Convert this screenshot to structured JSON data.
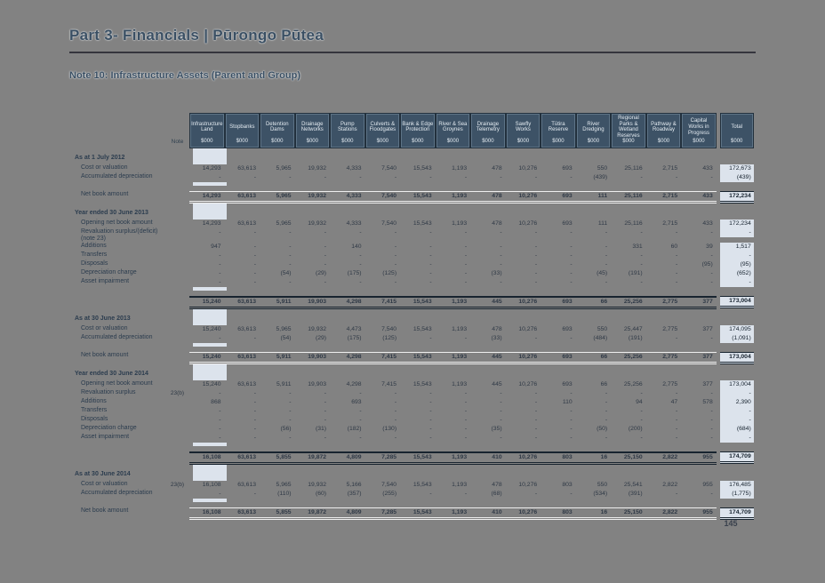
{
  "page": {
    "title": "Part 3- Financials | Pūrongo Pūtea",
    "subtitle": "Note 10: Infrastructure Assets (Parent and Group)",
    "page_number": "145"
  },
  "colors": {
    "page_background": "#828282",
    "heading_text": "#3a4f63",
    "header_cell_background": "#3d5266",
    "header_cell_text": "#e4ebf1",
    "total_column_background": "#dce3ec",
    "rule_dark": "#18242f"
  },
  "table": {
    "note_header": "Note",
    "unit": "$000",
    "columns": [
      "Infrastructure Land",
      "Stopbanks",
      "Detention Dams",
      "Drainage Networks",
      "Pump Stations",
      "Culverts & Floodgates",
      "Bank & Edge Protection",
      "River & Sea Groynes",
      "Drainage Telemetry",
      "Sawfly Works",
      "Tūtira Reserve",
      "River Dredging",
      "Regional Parks & Wetland Reserves",
      "Pathway & Roadway",
      "Capital Works in Progress",
      "Total"
    ],
    "sections": [
      {
        "header": "As at 1 July 2012",
        "rows": [
          {
            "label": "Cost or valuation",
            "note": "",
            "style": "",
            "values": [
              "14,293",
              "63,613",
              "5,965",
              "19,932",
              "4,333",
              "7,540",
              "15,543",
              "1,193",
              "478",
              "10,276",
              "693",
              "550",
              "25,116",
              "2,715",
              "433",
              "172,673"
            ]
          },
          {
            "label": "Accumulated depreciation",
            "note": "",
            "style": "",
            "values": [
              "-",
              "-",
              "-",
              "-",
              "-",
              "-",
              "-",
              "-",
              "-",
              "-",
              "-",
              "(439)",
              "-",
              "-",
              "-",
              "(439)"
            ]
          },
          {
            "label": "Net book amount",
            "note": "",
            "style": "netbook",
            "values": [
              "14,293",
              "63,613",
              "5,965",
              "19,932",
              "4,333",
              "7,540",
              "15,543",
              "1,193",
              "478",
              "10,276",
              "693",
              "111",
              "25,116",
              "2,715",
              "433",
              "172,234"
            ]
          }
        ]
      },
      {
        "header": "Year ended 30 June 2013",
        "rows": [
          {
            "label": "Opening net book amount",
            "note": "",
            "style": "",
            "values": [
              "14,293",
              "63,613",
              "5,965",
              "19,932",
              "4,333",
              "7,540",
              "15,543",
              "1,193",
              "478",
              "10,276",
              "693",
              "111",
              "25,116",
              "2,715",
              "433",
              "172,234"
            ]
          },
          {
            "label": "Revaluation surplus/(deficit) (note 23)",
            "note": "",
            "style": "",
            "values": [
              "-",
              "-",
              "-",
              "-",
              "-",
              "-",
              "-",
              "-",
              "-",
              "-",
              "-",
              "-",
              "-",
              "-",
              "-",
              "-"
            ]
          },
          {
            "label": "Additions",
            "note": "",
            "style": "",
            "values": [
              "947",
              "-",
              "-",
              "-",
              "140",
              "-",
              "-",
              "-",
              "-",
              "-",
              "-",
              "-",
              "331",
              "60",
              "39",
              "1,517"
            ]
          },
          {
            "label": "Transfers",
            "note": "",
            "style": "",
            "values": [
              "-",
              "-",
              "-",
              "-",
              "-",
              "-",
              "-",
              "-",
              "-",
              "-",
              "-",
              "-",
              "-",
              "-",
              "-",
              "-"
            ]
          },
          {
            "label": "Disposals",
            "note": "",
            "style": "",
            "values": [
              "-",
              "-",
              "-",
              "-",
              "-",
              "-",
              "-",
              "-",
              "-",
              "-",
              "-",
              "-",
              "-",
              "-",
              "(95)",
              "(95)"
            ]
          },
          {
            "label": "Depreciation charge",
            "note": "",
            "style": "",
            "values": [
              "-",
              "-",
              "(54)",
              "(29)",
              "(175)",
              "(125)",
              "-",
              "-",
              "(33)",
              "-",
              "-",
              "(45)",
              "(191)",
              "-",
              "-",
              "(652)"
            ]
          },
          {
            "label": "Asset impairment",
            "note": "",
            "style": "",
            "values": [
              "-",
              "-",
              "-",
              "-",
              "-",
              "-",
              "-",
              "-",
              "-",
              "-",
              "-",
              "-",
              "-",
              "-",
              "-",
              "-"
            ]
          },
          {
            "label": "",
            "note": "",
            "style": "closing",
            "values": [
              "15,240",
              "63,613",
              "5,911",
              "19,903",
              "4,298",
              "7,415",
              "15,543",
              "1,193",
              "445",
              "10,276",
              "693",
              "66",
              "25,256",
              "2,775",
              "377",
              "173,004"
            ]
          }
        ]
      },
      {
        "header": "As at 30 June 2013",
        "rows": [
          {
            "label": "Cost or valuation",
            "note": "",
            "style": "",
            "values": [
              "15,240",
              "63,613",
              "5,965",
              "19,932",
              "4,473",
              "7,540",
              "15,543",
              "1,193",
              "478",
              "10,276",
              "693",
              "550",
              "25,447",
              "2,775",
              "377",
              "174,095"
            ]
          },
          {
            "label": "Accumulated depreciation",
            "note": "",
            "style": "",
            "values": [
              "-",
              "-",
              "(54)",
              "(29)",
              "(175)",
              "(125)",
              "-",
              "-",
              "(33)",
              "-",
              "-",
              "(484)",
              "(191)",
              "-",
              "-",
              "(1,091)"
            ]
          },
          {
            "label": "Net book amount",
            "note": "",
            "style": "netbook",
            "values": [
              "15,240",
              "63,613",
              "5,911",
              "19,903",
              "4,298",
              "7,415",
              "15,543",
              "1,193",
              "445",
              "10,276",
              "693",
              "66",
              "25,256",
              "2,775",
              "377",
              "173,004"
            ]
          }
        ]
      },
      {
        "header": "Year ended 30 June 2014",
        "rows": [
          {
            "label": "Opening net book amount",
            "note": "",
            "style": "",
            "values": [
              "15,240",
              "63,613",
              "5,911",
              "19,903",
              "4,298",
              "7,415",
              "15,543",
              "1,193",
              "445",
              "10,276",
              "693",
              "66",
              "25,256",
              "2,775",
              "377",
              "173,004"
            ]
          },
          {
            "label": "Revaluation surplus",
            "note": "23(b)",
            "style": "",
            "values": [
              "-",
              "-",
              "-",
              "-",
              "-",
              "-",
              "-",
              "-",
              "-",
              "-",
              "-",
              "-",
              "-",
              "-",
              "-",
              "-"
            ]
          },
          {
            "label": "Additions",
            "note": "",
            "style": "",
            "values": [
              "868",
              "-",
              "-",
              "-",
              "693",
              "-",
              "-",
              "-",
              "-",
              "-",
              "110",
              "-",
              "94",
              "47",
              "578",
              "2,390"
            ]
          },
          {
            "label": "Transfers",
            "note": "",
            "style": "",
            "values": [
              "-",
              "-",
              "-",
              "-",
              "-",
              "-",
              "-",
              "-",
              "-",
              "-",
              "-",
              "-",
              "-",
              "-",
              "-",
              "-"
            ]
          },
          {
            "label": "Disposals",
            "note": "",
            "style": "",
            "values": [
              "-",
              "-",
              "-",
              "-",
              "-",
              "-",
              "-",
              "-",
              "-",
              "-",
              "-",
              "-",
              "-",
              "-",
              "-",
              "-"
            ]
          },
          {
            "label": "Depreciation charge",
            "note": "",
            "style": "",
            "values": [
              "-",
              "-",
              "(56)",
              "(31)",
              "(182)",
              "(130)",
              "-",
              "-",
              "(35)",
              "-",
              "-",
              "(50)",
              "(200)",
              "-",
              "-",
              "(684)"
            ]
          },
          {
            "label": "Asset impairment",
            "note": "",
            "style": "",
            "values": [
              "-",
              "-",
              "-",
              "-",
              "-",
              "-",
              "-",
              "-",
              "-",
              "-",
              "-",
              "-",
              "-",
              "-",
              "-",
              "-"
            ]
          },
          {
            "label": "",
            "note": "",
            "style": "closing",
            "values": [
              "16,108",
              "63,613",
              "5,855",
              "19,872",
              "4,809",
              "7,285",
              "15,543",
              "1,193",
              "410",
              "10,276",
              "803",
              "16",
              "25,150",
              "2,822",
              "955",
              "174,709"
            ]
          }
        ]
      },
      {
        "header": "As at 30 June 2014",
        "rows": [
          {
            "label": "Cost or valuation",
            "note": "23(b)",
            "style": "",
            "values": [
              "16,108",
              "63,613",
              "5,965",
              "19,932",
              "5,166",
              "7,540",
              "15,543",
              "1,193",
              "478",
              "10,276",
              "803",
              "550",
              "25,541",
              "2,822",
              "955",
              "176,485"
            ]
          },
          {
            "label": "Accumulated depreciation",
            "note": "",
            "style": "",
            "values": [
              "-",
              "-",
              "(110)",
              "(60)",
              "(357)",
              "(255)",
              "-",
              "-",
              "(68)",
              "-",
              "-",
              "(534)",
              "(391)",
              "-",
              "-",
              "(1,775)"
            ]
          },
          {
            "label": "Net book amount",
            "note": "",
            "style": "netbook",
            "values": [
              "16,108",
              "63,613",
              "5,855",
              "19,872",
              "4,809",
              "7,285",
              "15,543",
              "1,193",
              "410",
              "10,276",
              "803",
              "16",
              "25,150",
              "2,822",
              "955",
              "174,709"
            ]
          }
        ]
      }
    ]
  }
}
